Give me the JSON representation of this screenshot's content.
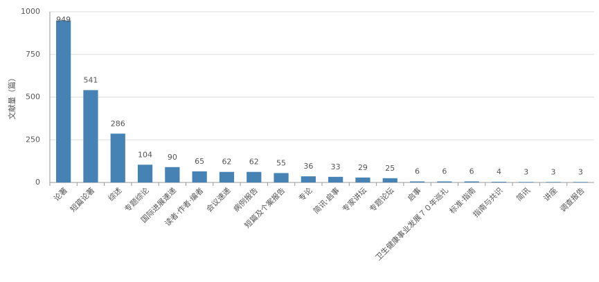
{
  "chart_data": {
    "type": "bar",
    "y_label": "文献量（篇）",
    "categories": [
      "论著",
      "短篇论著",
      "综述",
      "专题综论",
      "国际进展速递",
      "读者·作者·编者",
      "会议速递",
      "病例报告",
      "短篇及个案报告",
      "专论",
      "简讯·启事",
      "专家讲坛",
      "专题论坛",
      "启事",
      "卫生健康事业发展７０年巡礼",
      "标准·指南",
      "指南与共识",
      "简讯",
      "讲座",
      "调查报告"
    ],
    "values": [
      949,
      541,
      286,
      104,
      90,
      65,
      62,
      62,
      55,
      36,
      33,
      29,
      25,
      6,
      6,
      6,
      4,
      3,
      3,
      3
    ],
    "color": "#4682b4",
    "ylim": [
      0,
      1000
    ],
    "yticks": [
      0,
      250,
      500,
      750,
      1000
    ],
    "grid": true
  }
}
